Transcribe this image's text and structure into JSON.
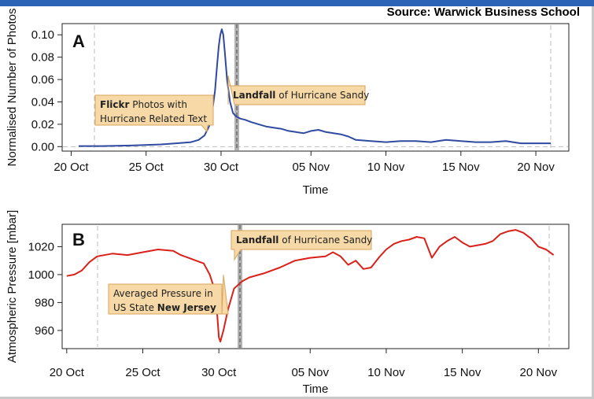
{
  "source": "Source: Warwick Business School",
  "colors": {
    "photos_line": "#2f4aa0",
    "pressure_line": "#d9211a",
    "callout_fill": "#f6d9a6",
    "callout_border": "#d9a55a"
  },
  "chart_data": [
    {
      "type": "line",
      "panel_label": "A",
      "xlabel": "Time",
      "ylabel": "Normalised Number of Photos",
      "x_ticks": [
        {
          "day": 0,
          "label": "20 Oct"
        },
        {
          "day": 5,
          "label": "25 Oct"
        },
        {
          "day": 10,
          "label": "30 Oct"
        },
        {
          "day": 16,
          "label": "05 Nov"
        },
        {
          "day": 21,
          "label": "10 Nov"
        },
        {
          "day": 26,
          "label": "15 Nov"
        },
        {
          "day": 31,
          "label": "20 Nov"
        }
      ],
      "y_ticks": [
        "0.00",
        "0.02",
        "0.04",
        "0.06",
        "0.08",
        "0.10"
      ],
      "ylim": [
        -0.004,
        0.11
      ],
      "xlim_days": [
        -0.6,
        33.2
      ],
      "series": [
        {
          "x_days": [
            0.5,
            2,
            4,
            6,
            7,
            8,
            8.5,
            8.9,
            9.2,
            9.4,
            9.6,
            9.75,
            9.85,
            9.95,
            10.05,
            10.15,
            10.25,
            10.4,
            10.6,
            10.8,
            11,
            11.3,
            11.6,
            12,
            12.5,
            13,
            13.5,
            14,
            14.5,
            15,
            15.5,
            16,
            16.5,
            17,
            17.5,
            18,
            18.5,
            19,
            20,
            21,
            22,
            23,
            24,
            25,
            26,
            27,
            28,
            29,
            30,
            31,
            32
          ],
          "values": [
            0.0005,
            0.0005,
            0.001,
            0.002,
            0.003,
            0.004,
            0.006,
            0.01,
            0.018,
            0.03,
            0.05,
            0.075,
            0.09,
            0.1,
            0.105,
            0.1,
            0.085,
            0.06,
            0.04,
            0.03,
            0.027,
            0.025,
            0.024,
            0.022,
            0.02,
            0.018,
            0.017,
            0.016,
            0.014,
            0.013,
            0.012,
            0.014,
            0.015,
            0.013,
            0.012,
            0.011,
            0.009,
            0.006,
            0.005,
            0.004,
            0.005,
            0.005,
            0.004,
            0.006,
            0.005,
            0.004,
            0.004,
            0.005,
            0.003,
            0.003,
            0.003
          ]
        }
      ],
      "annotations": [
        {
          "bold": "Flickr",
          "text": " Photos with",
          "line2": "Hurricane Related Text"
        },
        {
          "bold": "Landfall",
          "text": " of Hurricane Sandy"
        }
      ]
    },
    {
      "type": "line",
      "panel_label": "B",
      "xlabel": "Time",
      "ylabel": "Atmospheric Pressure [mbar]",
      "x_ticks": [
        {
          "day": 0,
          "label": "20 Oct"
        },
        {
          "day": 5,
          "label": "25 Oct"
        },
        {
          "day": 10,
          "label": "30 Oct"
        },
        {
          "day": 16,
          "label": "05 Nov"
        },
        {
          "day": 21,
          "label": "10 Nov"
        },
        {
          "day": 26,
          "label": "15 Nov"
        },
        {
          "day": 31,
          "label": "20 Nov"
        }
      ],
      "y_ticks": [
        "960",
        "980",
        "1000",
        "1020"
      ],
      "ylim": [
        947,
        1036
      ],
      "xlim_days": [
        -0.3,
        33
      ],
      "series": [
        {
          "x_days": [
            0,
            0.5,
            1,
            1.5,
            2,
            3,
            4,
            5,
            6,
            7,
            7.5,
            8,
            8.5,
            9,
            9.4,
            9.7,
            9.9,
            10,
            10.1,
            10.3,
            10.6,
            11,
            11.5,
            12,
            13,
            14,
            15,
            16,
            17,
            17.5,
            18,
            18.5,
            19,
            19.5,
            20,
            20.5,
            21,
            21.5,
            22,
            22.5,
            23,
            23.5,
            24,
            24.5,
            25,
            25.5,
            26,
            26.5,
            27,
            27.5,
            28,
            28.5,
            29,
            29.5,
            30,
            30.5,
            31,
            31.5,
            32
          ],
          "values": [
            999,
            1000,
            1003,
            1009,
            1013,
            1015,
            1014,
            1016,
            1018,
            1017,
            1014,
            1012,
            1010,
            1008,
            1000,
            990,
            970,
            955,
            952,
            960,
            975,
            990,
            995,
            998,
            1001,
            1005,
            1010,
            1012,
            1013,
            1016,
            1013,
            1007,
            1010,
            1004,
            1005,
            1012,
            1018,
            1022,
            1024,
            1025,
            1027,
            1026,
            1012,
            1020,
            1024,
            1027,
            1023,
            1020,
            1021,
            1022,
            1024,
            1029,
            1031,
            1032,
            1030,
            1026,
            1020,
            1018,
            1014
          ]
        }
      ],
      "annotations": [
        {
          "bold": "",
          "text": "Averaged Pressure in",
          "line2": "US State ",
          "line2_bold": "New Jersey"
        },
        {
          "bold": "Landfall",
          "text": " of Hurricane Sandy"
        }
      ]
    }
  ]
}
